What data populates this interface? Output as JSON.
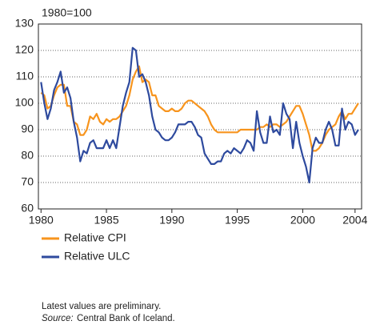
{
  "chart_data": {
    "type": "line",
    "y_label": "1980=100",
    "x": [
      1980,
      1980.25,
      1980.5,
      1980.75,
      1981,
      1981.25,
      1981.5,
      1981.75,
      1982,
      1982.25,
      1982.5,
      1982.75,
      1983,
      1983.25,
      1983.5,
      1983.75,
      1984,
      1984.25,
      1984.5,
      1984.75,
      1985,
      1985.25,
      1985.5,
      1985.75,
      1986,
      1986.25,
      1986.5,
      1986.75,
      1987,
      1987.25,
      1987.5,
      1987.75,
      1988,
      1988.25,
      1988.5,
      1988.75,
      1989,
      1989.25,
      1989.5,
      1989.75,
      1990,
      1990.25,
      1990.5,
      1990.75,
      1991,
      1991.25,
      1991.5,
      1991.75,
      1992,
      1992.25,
      1992.5,
      1992.75,
      1993,
      1993.25,
      1993.5,
      1993.75,
      1994,
      1994.25,
      1994.5,
      1994.75,
      1995,
      1995.25,
      1995.5,
      1995.75,
      1996,
      1996.25,
      1996.5,
      1996.75,
      1997,
      1997.25,
      1997.5,
      1997.75,
      1998,
      1998.25,
      1998.5,
      1998.75,
      1999,
      1999.25,
      1999.5,
      1999.75,
      2000,
      2000.25,
      2000.5,
      2000.75,
      2001,
      2001.25,
      2001.5,
      2001.75,
      2002,
      2002.25,
      2002.5,
      2002.75,
      2003,
      2003.25,
      2003.5,
      2003.75,
      2004,
      2004.25
    ],
    "series": [
      {
        "name": "Relative CPI",
        "color": "#f7941d",
        "values": [
          104,
          103,
          98,
          99,
          103,
          106,
          107,
          107,
          99,
          99,
          93,
          92,
          88,
          88,
          90,
          95,
          94,
          96,
          93,
          92,
          94,
          93,
          94,
          94,
          95,
          97,
          99,
          103,
          109,
          112,
          114,
          108,
          109,
          108,
          103,
          103,
          99,
          98,
          97,
          97,
          98,
          97,
          97,
          98,
          100,
          101,
          101,
          100,
          99,
          98,
          97,
          95,
          92,
          90,
          89,
          89,
          89,
          89,
          89,
          89,
          89,
          90,
          90,
          90,
          90,
          90,
          90,
          91,
          91,
          92,
          91,
          92,
          92,
          91,
          92,
          93,
          95,
          97,
          99,
          99,
          96,
          92,
          88,
          82,
          82,
          83,
          85,
          88,
          90,
          91,
          92,
          95,
          97,
          94,
          96,
          96,
          98,
          100
        ]
      },
      {
        "name": "Relative ULC",
        "color": "#2e4a9e",
        "values": [
          108,
          100,
          94,
          98,
          105,
          108,
          112,
          104,
          106,
          102,
          93,
          87,
          78,
          82,
          81,
          85,
          86,
          83,
          83,
          83,
          86,
          83,
          86,
          83,
          91,
          99,
          104,
          108,
          121,
          120,
          110,
          111,
          108,
          103,
          95,
          90,
          89,
          87,
          86,
          86,
          87,
          89,
          92,
          92,
          92,
          93,
          93,
          91,
          88,
          87,
          81,
          79,
          77,
          77,
          78,
          78,
          81,
          82,
          81,
          83,
          82,
          81,
          83,
          86,
          85,
          82,
          97,
          89,
          85,
          85,
          95,
          89,
          90,
          88,
          100,
          96,
          94,
          83,
          93,
          85,
          80,
          76,
          70,
          83,
          87,
          85,
          85,
          90,
          93,
          90,
          84,
          84,
          98,
          90,
          93,
          92,
          88,
          90
        ]
      }
    ],
    "xlim": [
      1979.8,
      2004.5
    ],
    "xticks": [
      1980,
      1985,
      1990,
      1995,
      2000,
      2004
    ],
    "ylim": [
      60,
      130
    ],
    "yticks": [
      60,
      70,
      80,
      90,
      100,
      110,
      120,
      130
    ],
    "grid": true,
    "note": "Latest values are preliminary.",
    "source_label": "Source:",
    "source_text": "Central Bank of Iceland."
  }
}
